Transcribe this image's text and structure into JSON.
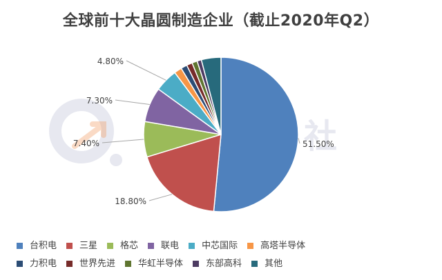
{
  "chart_data": {
    "type": "pie",
    "title": "全球前十大晶圆制造企业（截止2020年Q2）",
    "categories": [
      "台积电",
      "三星",
      "格芯",
      "联电",
      "中芯国际",
      "高塔半导体",
      "力积电",
      "世界先进",
      "华虹半导体",
      "东部高科",
      "其他"
    ],
    "values": [
      51.5,
      18.8,
      7.4,
      7.3,
      4.8,
      1.6,
      1.3,
      1.2,
      1.1,
      0.9,
      4.1
    ],
    "labels": [
      "51.50%",
      "18.80%",
      "7.40%",
      "7.30%",
      "4.80%",
      null,
      null,
      null,
      null,
      null,
      null
    ],
    "colors": [
      "#4f81bd",
      "#c0504d",
      "#9bbb59",
      "#8064a2",
      "#4bacc6",
      "#f79646",
      "#2c4d75",
      "#772c2a",
      "#5f7530",
      "#4d3b62",
      "#276a7c"
    ],
    "legend_position": "bottom"
  },
  "watermark": "港股研究社"
}
